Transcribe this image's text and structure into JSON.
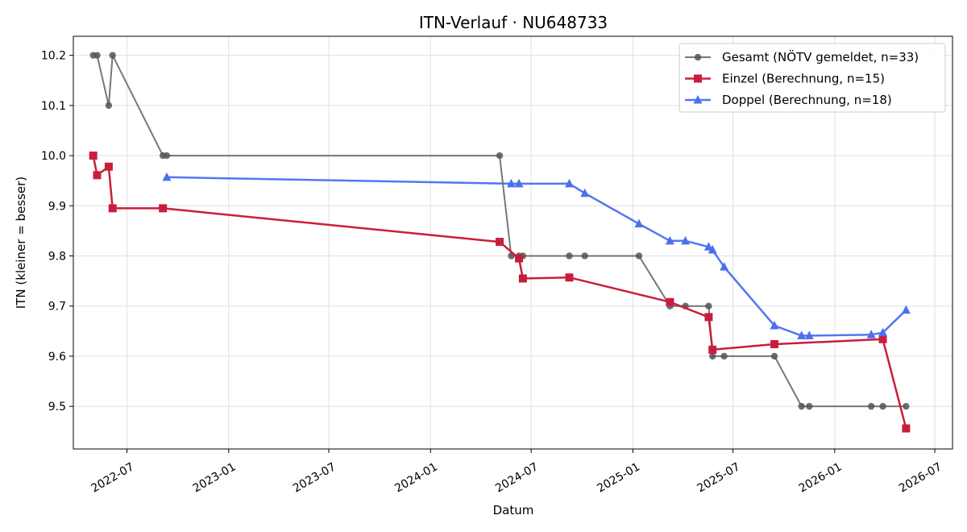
{
  "chart_data": {
    "type": "line",
    "title": "ITN-Verlauf · NU648733",
    "xlabel": "Datum",
    "ylabel": "ITN  (kleiner = besser)",
    "xlim": [
      "2022-03-26",
      "2026-08-02"
    ],
    "ylim": [
      9.415,
      10.238
    ],
    "x_ticks": [
      "2022-07",
      "2023-01",
      "2023-07",
      "2024-01",
      "2024-07",
      "2025-01",
      "2025-07",
      "2026-01",
      "2026-07"
    ],
    "y_ticks": [
      "9.5",
      "9.6",
      "9.7",
      "9.8",
      "9.9",
      "10.0",
      "10.1",
      "10.2"
    ],
    "grid": true,
    "legend_position": "top-right",
    "series": [
      {
        "name": "Gesamt (NÖTV gemeldet, n=33)",
        "color": "#555555",
        "marker": "circle",
        "points": [
          [
            "2022-05-01",
            10.2
          ],
          [
            "2022-05-08",
            10.2
          ],
          [
            "2022-05-29",
            10.1
          ],
          [
            "2022-06-05",
            10.2
          ],
          [
            "2022-09-04",
            10.0
          ],
          [
            "2022-09-11",
            10.0
          ],
          [
            "2024-05-05",
            10.0
          ],
          [
            "2024-05-26",
            9.8
          ],
          [
            "2024-06-09",
            9.8
          ],
          [
            "2024-06-16",
            9.8
          ],
          [
            "2024-09-08",
            9.8
          ],
          [
            "2024-10-06",
            9.8
          ],
          [
            "2025-01-12",
            9.8
          ],
          [
            "2025-03-09",
            9.7
          ],
          [
            "2025-04-06",
            9.7
          ],
          [
            "2025-05-18",
            9.7
          ],
          [
            "2025-05-25",
            9.6
          ],
          [
            "2025-06-15",
            9.6
          ],
          [
            "2025-09-14",
            9.6
          ],
          [
            "2025-11-02",
            9.5
          ],
          [
            "2025-11-16",
            9.5
          ],
          [
            "2026-03-08",
            9.5
          ],
          [
            "2026-03-29",
            9.5
          ],
          [
            "2026-05-10",
            9.5
          ]
        ]
      },
      {
        "name": "Einzel (Berechnung, n=15)",
        "color": "#c81e3c",
        "marker": "square",
        "points": [
          [
            "2022-05-01",
            10.0
          ],
          [
            "2022-05-08",
            9.961
          ],
          [
            "2022-05-29",
            9.978
          ],
          [
            "2022-06-05",
            9.895
          ],
          [
            "2022-09-04",
            9.895
          ],
          [
            "2024-05-05",
            9.828
          ],
          [
            "2024-06-09",
            9.795
          ],
          [
            "2024-06-16",
            9.755
          ],
          [
            "2024-09-08",
            9.757
          ],
          [
            "2025-03-09",
            9.708
          ],
          [
            "2025-05-18",
            9.678
          ],
          [
            "2025-05-25",
            9.613
          ],
          [
            "2025-09-14",
            9.624
          ],
          [
            "2026-03-29",
            9.634
          ],
          [
            "2026-05-10",
            9.456
          ]
        ]
      },
      {
        "name": "Doppel (Berechnung, n=18)",
        "color": "#4a6ff0",
        "marker": "triangle",
        "points": [
          [
            "2022-09-11",
            9.957
          ],
          [
            "2024-05-26",
            9.944
          ],
          [
            "2024-06-09",
            9.944
          ],
          [
            "2024-09-08",
            9.944
          ],
          [
            "2024-10-06",
            9.925
          ],
          [
            "2025-01-12",
            9.864
          ],
          [
            "2025-03-09",
            9.83
          ],
          [
            "2025-04-06",
            9.83
          ],
          [
            "2025-05-18",
            9.818
          ],
          [
            "2025-05-25",
            9.812
          ],
          [
            "2025-06-15",
            9.778
          ],
          [
            "2025-09-14",
            9.661
          ],
          [
            "2025-11-02",
            9.641
          ],
          [
            "2025-11-16",
            9.641
          ],
          [
            "2026-03-08",
            9.643
          ],
          [
            "2026-03-29",
            9.647
          ],
          [
            "2026-05-10",
            9.692
          ]
        ]
      }
    ]
  }
}
